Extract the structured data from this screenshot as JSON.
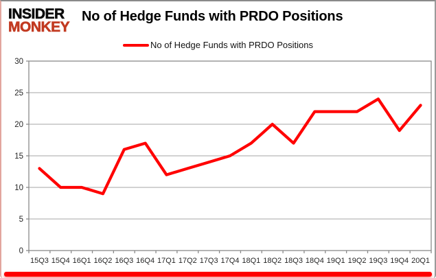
{
  "logo": {
    "line1": "INSIDER",
    "line2": "MONKEY"
  },
  "title": "No of Hedge Funds with PRDO Positions",
  "legend": {
    "label": "No of Hedge Funds with PRDO Positions"
  },
  "chart_data": {
    "type": "line",
    "title": "No of Hedge Funds with PRDO Positions",
    "categories": [
      "15Q3",
      "15Q4",
      "16Q1",
      "16Q2",
      "16Q3",
      "16Q4",
      "17Q1",
      "17Q2",
      "17Q3",
      "17Q4",
      "18Q1",
      "18Q2",
      "18Q3",
      "18Q4",
      "19Q1",
      "19Q2",
      "19Q3",
      "19Q4",
      "20Q1"
    ],
    "series": [
      {
        "name": "No of Hedge Funds with PRDO Positions",
        "color": "#ff0000",
        "values": [
          13,
          10,
          10,
          9,
          16,
          17,
          12,
          13,
          14,
          15,
          17,
          20,
          17,
          22,
          22,
          22,
          24,
          19,
          23
        ]
      }
    ],
    "xlabel": "",
    "ylabel": "",
    "ylim": [
      0,
      30
    ],
    "yticks": [
      0,
      5,
      10,
      15,
      20,
      25,
      30
    ],
    "grid": "horizontal",
    "legend_position": "top-center"
  },
  "colors": {
    "series_red": "#ff0000",
    "logo_black": "#0b0b0b",
    "logo_rust": "#c23a21",
    "grid_line": "#a6a6a6",
    "plot_border": "#8a8a8a",
    "axis_text": "#262626",
    "bottom_bar": "#ff0000"
  }
}
